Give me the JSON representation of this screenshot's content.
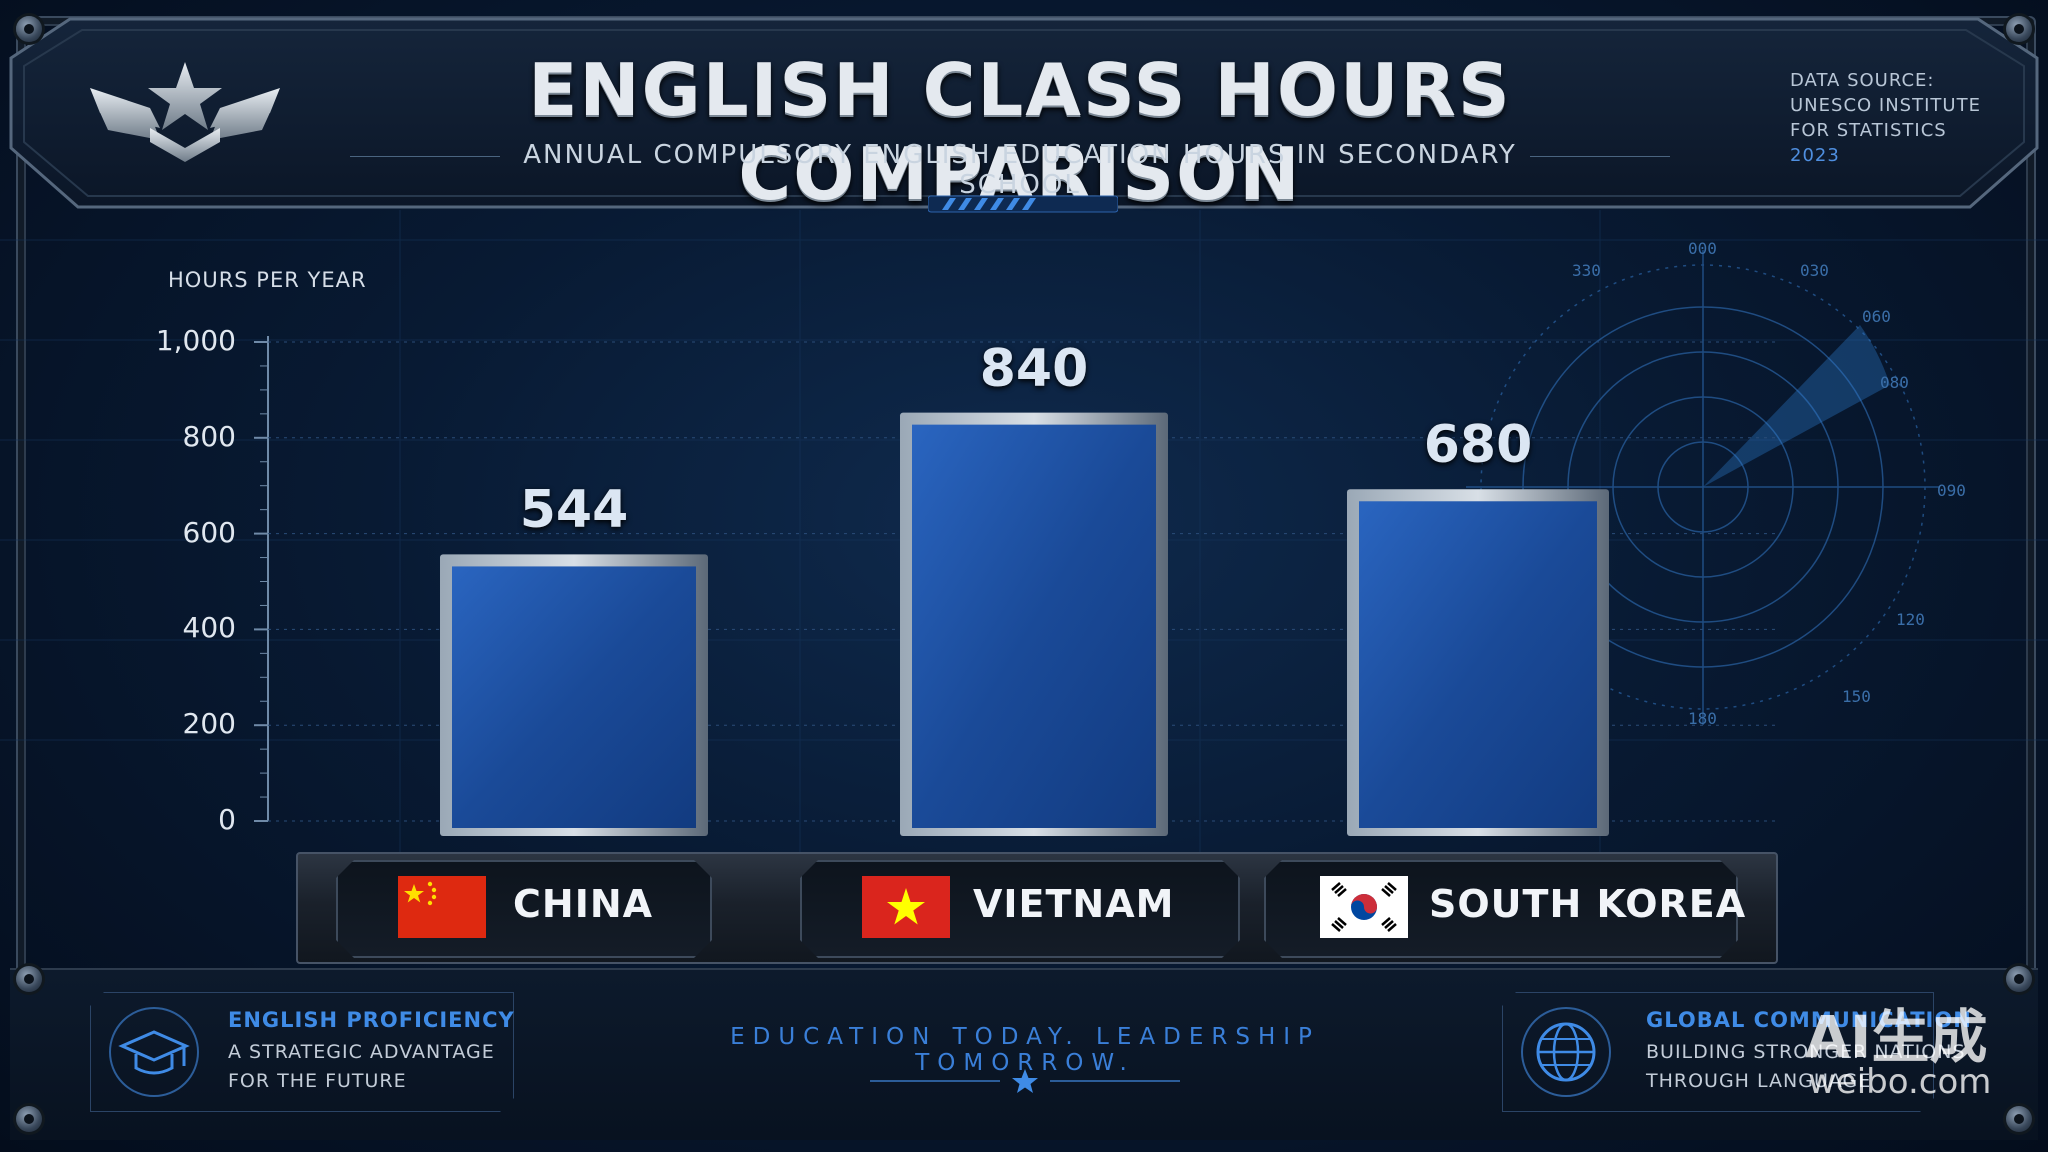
{
  "header": {
    "title": "ENGLISH CLASS HOURS COMPARISON",
    "subtitle": "ANNUAL COMPULSORY ENGLISH EDUCATION HOURS IN SECONDARY SCHOOL",
    "source_lines": [
      "DATA SOURCE:",
      "UNESCO INSTITUTE",
      "FOR STATISTICS"
    ],
    "source_year": "2023"
  },
  "chart_data": {
    "type": "bar",
    "title": "ENGLISH CLASS HOURS COMPARISON",
    "subtitle": "ANNUAL COMPULSORY ENGLISH EDUCATION HOURS IN SECONDARY SCHOOL",
    "ylabel": "HOURS PER YEAR",
    "xlabel": "",
    "ylim": [
      0,
      1000
    ],
    "yticks": [
      "0",
      "200",
      "400",
      "600",
      "800",
      "1,000"
    ],
    "categories": [
      "CHINA",
      "VIETNAM",
      "SOUTH KOREA"
    ],
    "values": [
      544,
      840,
      680
    ],
    "value_labels": [
      "544",
      "840",
      "680"
    ],
    "grid": true,
    "bar_color": "#1e4f9e"
  },
  "radar_labels": [
    "000",
    "030",
    "060",
    "080",
    "090",
    "120",
    "150",
    "180",
    "330"
  ],
  "footer": {
    "left_heading": "ENGLISH PROFICIENCY",
    "left_lines": [
      "A STRATEGIC ADVANTAGE",
      "FOR THE FUTURE"
    ],
    "left_icon": "graduation-cap-icon",
    "tagline": "EDUCATION TODAY.   LEADERSHIP TOMORROW.",
    "right_heading": "GLOBAL COMMUNICATION",
    "right_lines": [
      "BUILDING STRONGER NATIONS",
      "THROUGH LANGUAGE"
    ],
    "right_icon": "globe-icon"
  },
  "watermark": {
    "line1": "AI生成",
    "line2": "weibo.com"
  },
  "colors": {
    "accent": "#3f8be6",
    "background": "#081a33",
    "bar": "#1e4f9e"
  }
}
